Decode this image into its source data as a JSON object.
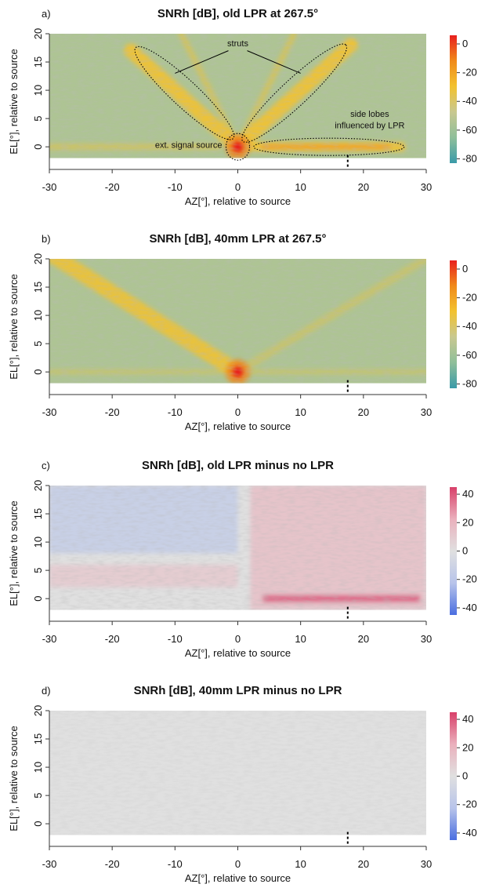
{
  "chart_data": [
    {
      "type": "heatmap",
      "panel": "a)",
      "title": "SNRh [dB], old LPR at 267.5°",
      "xlabel": "AZ[°], relative to source",
      "ylabel": "EL[°], relative to source",
      "xlim": [
        -30,
        30
      ],
      "xticks": [
        -30,
        -20,
        -10,
        0,
        10,
        20,
        30
      ],
      "ylim": [
        -4,
        20
      ],
      "yticks": [
        0,
        5,
        10,
        15,
        20
      ],
      "heatmap_ylim": [
        -2,
        20
      ],
      "marker_x": 17.5,
      "clim": [
        -83,
        6
      ],
      "cticks": [
        0,
        -20,
        -40,
        -60,
        -80
      ],
      "colors": [
        "#3a9aa8",
        "#8fbf9a",
        "#c8c890",
        "#f2c230",
        "#f08a1a",
        "#e8201e"
      ],
      "annotations": [
        "struts",
        "side lobes",
        "influenced by LPR",
        "ext. signal source"
      ]
    },
    {
      "type": "heatmap",
      "panel": "b)",
      "title": "SNRh [dB], 40mm LPR at 267.5°",
      "xlabel": "AZ[°], relative to source",
      "ylabel": "EL[°], relative to source",
      "xlim": [
        -30,
        30
      ],
      "xticks": [
        -30,
        -20,
        -10,
        0,
        10,
        20,
        30
      ],
      "ylim": [
        -4,
        20
      ],
      "yticks": [
        0,
        5,
        10,
        15,
        20
      ],
      "heatmap_ylim": [
        -2,
        20
      ],
      "marker_x": 17.5,
      "clim": [
        -83,
        6
      ],
      "cticks": [
        0,
        -20,
        -40,
        -60,
        -80
      ],
      "colors": [
        "#3a9aa8",
        "#8fbf9a",
        "#c8c890",
        "#f2c230",
        "#f08a1a",
        "#e8201e"
      ]
    },
    {
      "type": "heatmap",
      "panel": "c)",
      "title": "SNRh [dB], old LPR minus no LPR",
      "xlabel": "AZ[°], relative to source",
      "ylabel": "EL[°], relative to source",
      "xlim": [
        -30,
        30
      ],
      "xticks": [
        -30,
        -20,
        -10,
        0,
        10,
        20,
        30
      ],
      "ylim": [
        -4,
        20
      ],
      "yticks": [
        0,
        5,
        10,
        15,
        20
      ],
      "heatmap_ylim": [
        -2,
        20
      ],
      "marker_x": 17.5,
      "clim": [
        -45,
        45
      ],
      "cticks": [
        40,
        20,
        0,
        -20,
        -40
      ],
      "colors": [
        "#4a6ee0",
        "#b8c4ea",
        "#e0e0e0",
        "#eab0bc",
        "#d8406a"
      ]
    },
    {
      "type": "heatmap",
      "panel": "d)",
      "title": "SNRh [dB], 40mm LPR minus no LPR",
      "xlabel": "AZ[°], relative to source",
      "ylabel": "EL[°], relative to source",
      "xlim": [
        -30,
        30
      ],
      "xticks": [
        -30,
        -20,
        -10,
        0,
        10,
        20,
        30
      ],
      "ylim": [
        -4,
        20
      ],
      "yticks": [
        0,
        5,
        10,
        15,
        20
      ],
      "heatmap_ylim": [
        -2,
        20
      ],
      "marker_x": 17.5,
      "clim": [
        -45,
        45
      ],
      "cticks": [
        40,
        20,
        0,
        -20,
        -40
      ],
      "colors": [
        "#4a6ee0",
        "#b8c4ea",
        "#e0e0e0",
        "#eab0bc",
        "#d8406a"
      ]
    }
  ]
}
